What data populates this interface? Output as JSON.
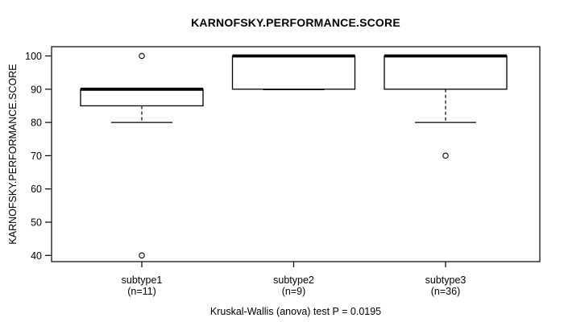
{
  "chart_data": {
    "type": "boxplot",
    "title": "KARNOFSKY.PERFORMANCE.SCORE",
    "ylabel": "KARNOFSKY.PERFORMANCE.SCORE",
    "footer": "Kruskal-Wallis (anova) test P = 0.0195",
    "yticks": [
      100,
      90,
      80,
      70,
      60,
      50,
      40
    ],
    "ylim": [
      38,
      103
    ],
    "grid": false,
    "line_color": "#000000",
    "box_fill": "#ffffff",
    "groups": [
      {
        "label": "subtype1",
        "n_label": "(n=11)",
        "q1": 85,
        "median": 90,
        "q3": 90,
        "whisker_low": 80,
        "whisker_high": 90,
        "outliers": [
          100,
          40
        ]
      },
      {
        "label": "subtype2",
        "n_label": "(n=9)",
        "q1": 90,
        "median": 100,
        "q3": 100,
        "whisker_low": 90,
        "whisker_high": 100,
        "outliers": []
      },
      {
        "label": "subtype3",
        "n_label": "(n=36)",
        "q1": 90,
        "median": 100,
        "q3": 100,
        "whisker_low": 80,
        "whisker_high": 100,
        "outliers": [
          70
        ]
      }
    ]
  }
}
